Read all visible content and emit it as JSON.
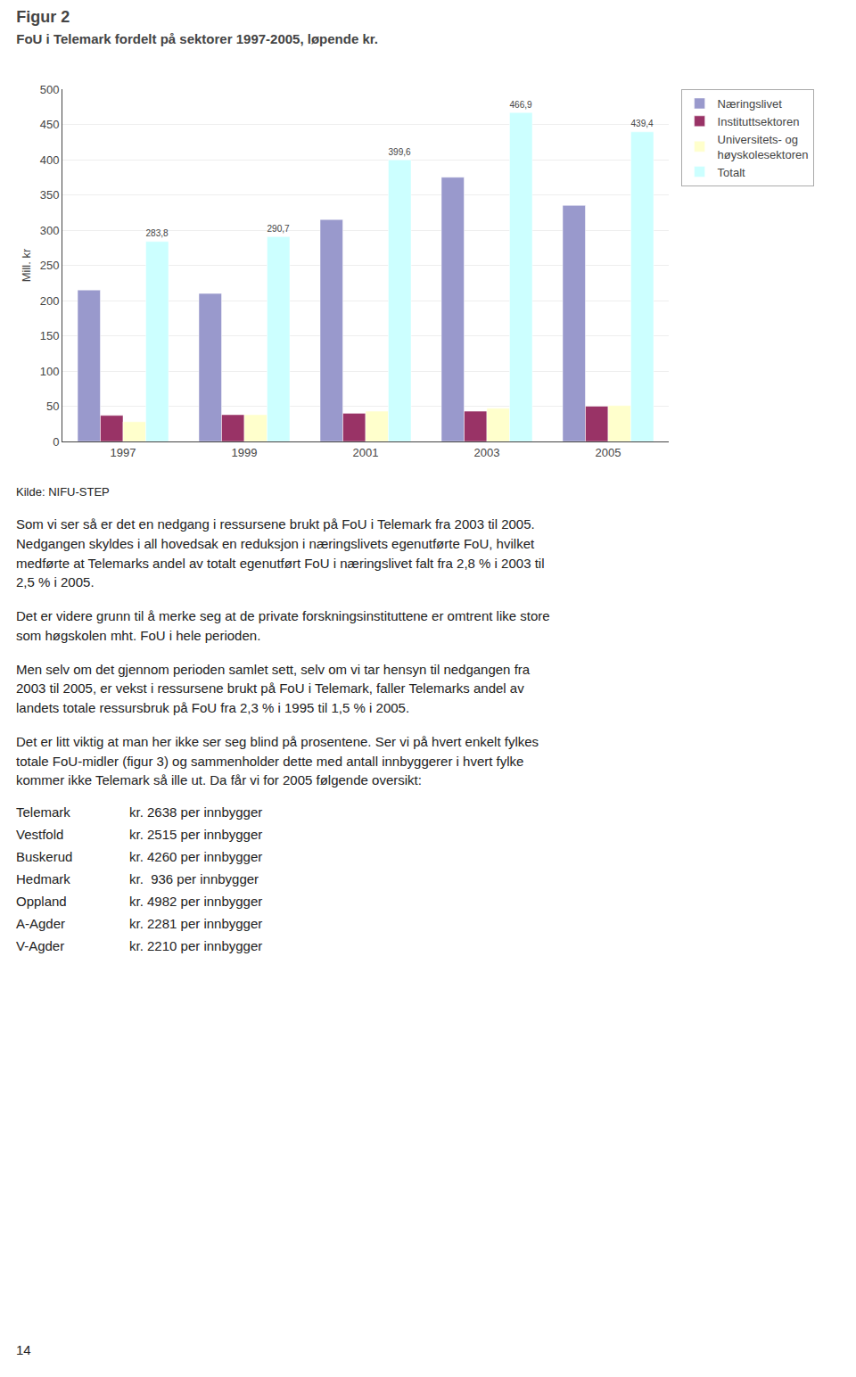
{
  "chart_data": {
    "type": "bar",
    "title": "Figur 2",
    "subtitle": "FoU i Telemark fordelt på sektorer 1997-2005, løpende kr.",
    "categories": [
      "1997",
      "1999",
      "2001",
      "2003",
      "2005"
    ],
    "series": [
      {
        "name": "Næringslivet",
        "color": "#9999cc",
        "values": [
          215,
          210,
          315,
          375,
          335
        ]
      },
      {
        "name": "Instituttsektoren",
        "color": "#993366",
        "values": [
          37,
          38,
          40,
          43,
          50
        ]
      },
      {
        "name": "Universitets- og\nhøyskolesektoren",
        "color": "#ffffcc",
        "values": [
          28,
          38,
          43,
          47,
          51
        ]
      },
      {
        "name": "Totalt",
        "color": "#ccffff",
        "values": [
          283.8,
          290.7,
          399.6,
          466.9,
          439.4
        ],
        "data_labels": true,
        "value_labels": [
          "283,8",
          "290,7",
          "399,6",
          "466,9",
          "439,4"
        ]
      }
    ],
    "ylabel": "Mill. kr",
    "ylim": [
      0,
      500
    ],
    "yticks": [
      0,
      50,
      100,
      150,
      200,
      250,
      300,
      350,
      400,
      450,
      500
    ],
    "grid": true,
    "legend": "upper right",
    "annotations": [
      "Kilde: NIFU-STEP"
    ]
  },
  "text": {
    "paragraphs": [
      "Som vi ser så er det en nedgang i ressursene brukt på FoU i Telemark fra 2003 til 2005.\nNedgangen skyldes i all hovedsak en reduksjon i næringslivets egenutførte FoU, hvilket\nmedførte at Telemarks andel av totalt egenutført FoU i næringslivet falt fra 2,8 % i 2003 til\n2,5 % i 2005.",
      "Det er videre grunn til å merke seg at de private forskningsinstituttene er omtrent like store\nsom høgskolen mht. FoU i hele perioden.",
      "Men selv om det gjennom perioden samlet sett, selv om vi tar hensyn til nedgangen fra\n2003 til 2005, er vekst i ressursene brukt på FoU i Telemark, faller Telemarks andel av\nlandets totale ressursbruk på FoU fra 2,3 % i 1995 til 1,5 % i 2005.",
      "Det er litt viktig at man her ikke ser seg blind på prosentene. Ser vi på hvert enkelt fylkes\ntotale FoU-midler (figur 3) og sammenholder dette med antall innbyggerer i hvert fylke\nkommer ikke Telemark så ille ut. Da får vi for 2005 følgende oversikt:"
    ],
    "table": [
      [
        "Telemark",
        "kr. 2638 per innbygger"
      ],
      [
        "Vestfold",
        "kr. 2515 per innbygger"
      ],
      [
        "Buskerud",
        "kr. 4260 per innbygger"
      ],
      [
        "Hedmark",
        "kr.  936 per innbygger"
      ],
      [
        "Oppland",
        "kr. 4982 per innbygger"
      ],
      [
        "A-Agder",
        "kr. 2281 per innbygger"
      ],
      [
        "V-Agder",
        "kr. 2210 per innbygger"
      ]
    ],
    "page_number": "14"
  }
}
